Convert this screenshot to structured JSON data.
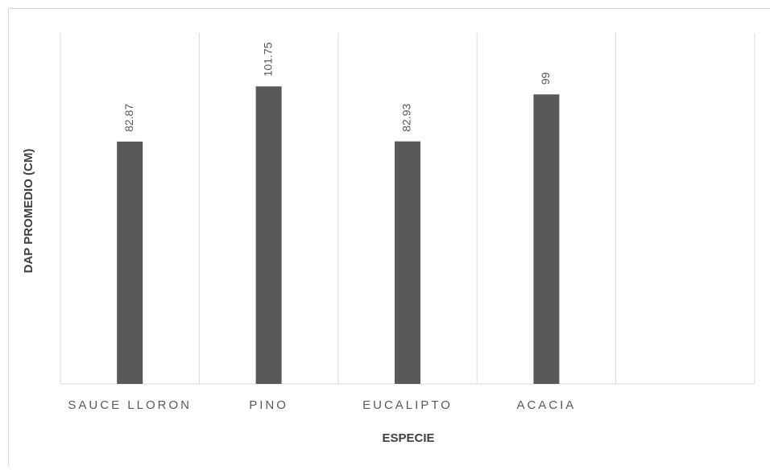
{
  "chart_data": {
    "type": "bar",
    "categories": [
      "SAUCE LLORON",
      "PINO",
      "EUCALIPTO",
      "ACACIA",
      null
    ],
    "values": [
      82.87,
      101.75,
      82.93,
      99,
      null
    ],
    "color": "#595959",
    "ylim": [
      0,
      120
    ],
    "x_label": "ESPECIE",
    "y_label": "DAP PROMEDIO (CM)"
  }
}
